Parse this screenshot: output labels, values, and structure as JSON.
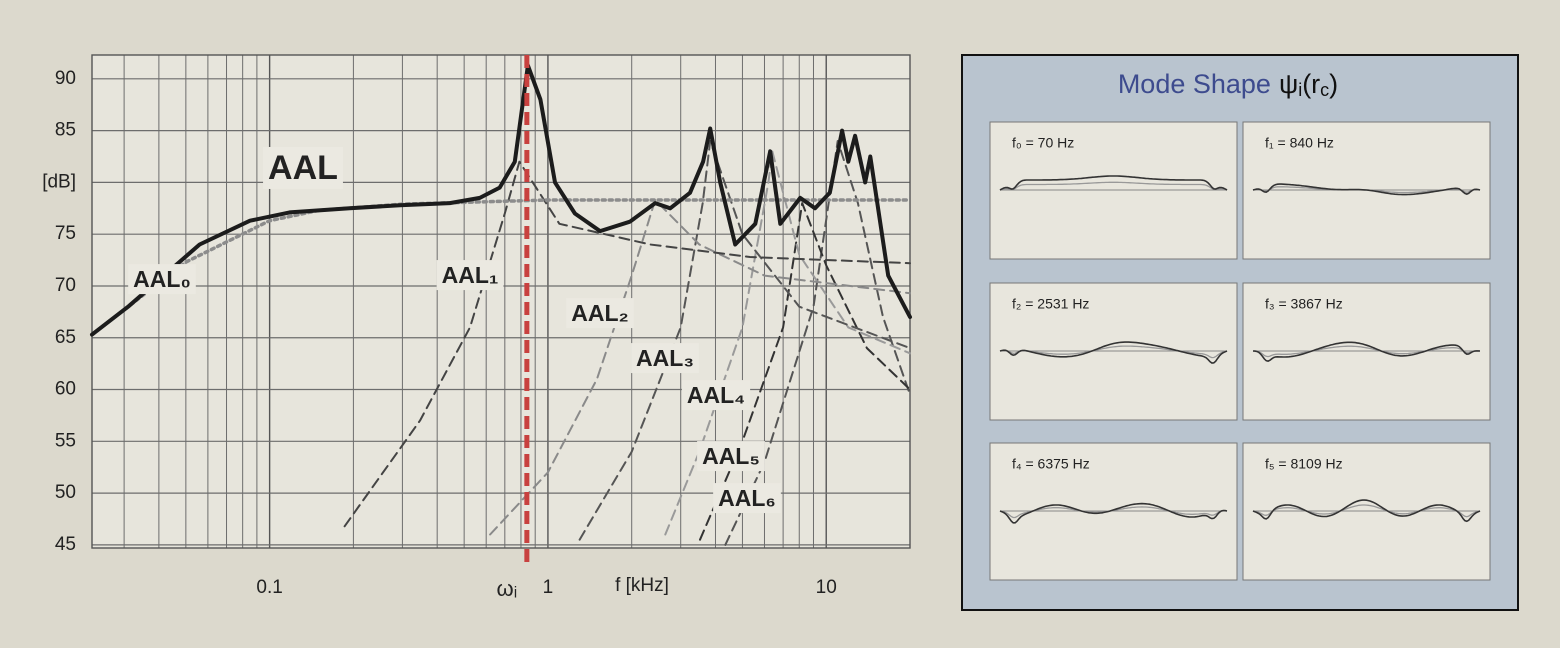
{
  "chart_data": {
    "type": "line",
    "x_scale": "log",
    "xlim": [
      0.023,
      20
    ],
    "ylim": [
      44.7,
      92.3
    ],
    "xticks": [
      0.1,
      1,
      10
    ],
    "xminor": [
      0.03,
      0.04,
      0.05,
      0.06,
      0.07,
      0.08,
      0.09,
      0.2,
      0.3,
      0.4,
      0.5,
      0.6,
      0.7,
      0.8,
      0.9,
      2,
      3,
      4,
      5,
      6,
      7,
      8,
      9,
      20
    ],
    "yticks": [
      45,
      50,
      55,
      60,
      65,
      70,
      75,
      {
        "value": 80,
        "label": "[dB]"
      },
      85,
      90
    ],
    "xlabel": "f [kHz]",
    "grid": true,
    "marker": {
      "x": 0.84,
      "label": "ωᵢ",
      "color": "#c8413f"
    },
    "series": [
      {
        "name": "AAL",
        "color": "#1c1c1c",
        "style": "solid",
        "x": [
          0.023,
          0.031,
          0.056,
          0.085,
          0.118,
          0.194,
          0.294,
          0.444,
          0.569,
          0.671,
          0.76,
          0.847,
          0.94,
          1.06,
          1.25,
          1.54,
          1.97,
          2.43,
          2.75,
          3.24,
          3.61,
          3.83,
          4.16,
          4.71,
          5.56,
          6.29,
          6.84,
          8.06,
          9.12,
          10.3,
          11.4,
          12.0,
          12.7,
          13.8,
          14.4,
          16.7,
          20
        ],
        "values": [
          65.3,
          68,
          74,
          76.3,
          77.1,
          77.5,
          77.8,
          78,
          78.5,
          79.5,
          82,
          91.3,
          88,
          80,
          77,
          75.3,
          76.2,
          78,
          77.5,
          79,
          82,
          85.2,
          80,
          74,
          76,
          83,
          76,
          78.5,
          77.5,
          79,
          85,
          82,
          84.5,
          80,
          82.5,
          71,
          67
        ]
      },
      {
        "name": "AAL₀",
        "color": "#8c8c8c",
        "style": "dotted",
        "x": [
          0.023,
          0.05,
          0.1,
          0.15,
          0.3,
          1,
          5,
          20
        ],
        "values": [
          65.3,
          72.3,
          76.3,
          77.3,
          77.9,
          78.3,
          78.3,
          78.3
        ]
      },
      {
        "name": "AAL₁",
        "color": "#444444",
        "style": "dashed",
        "x": [
          0.186,
          0.347,
          0.525,
          0.7,
          0.79,
          1.1,
          2.33,
          5.32,
          20
        ],
        "values": [
          46.8,
          57,
          66,
          77,
          82,
          76,
          74,
          72.8,
          72.2
        ]
      },
      {
        "name": "AAL₂",
        "color": "#8a8a8a",
        "style": "dashed",
        "x": [
          0.62,
          1.0,
          1.5,
          2.0,
          2.43,
          3.5,
          6,
          20
        ],
        "values": [
          46,
          52,
          61,
          71,
          78.3,
          74,
          71,
          69.3
        ]
      },
      {
        "name": "AAL₃",
        "color": "#555555",
        "style": "dashed",
        "x": [
          1.3,
          2,
          3,
          3.6,
          3.83,
          5,
          8,
          20
        ],
        "values": [
          45.5,
          54,
          66,
          78,
          84,
          75,
          68,
          64
        ]
      },
      {
        "name": "AAL₄",
        "color": "#9a9a9a",
        "style": "dashed",
        "x": [
          2.64,
          3.5,
          5,
          6.2,
          6.4,
          8,
          12,
          20
        ],
        "values": [
          46,
          54,
          66,
          80,
          83,
          73,
          66,
          63.5
        ]
      },
      {
        "name": "AAL₅",
        "color": "#333333",
        "style": "dashed",
        "x": [
          3.52,
          5,
          7,
          8.2,
          10,
          14,
          20
        ],
        "values": [
          45.5,
          55,
          66,
          78,
          72,
          64,
          60
        ]
      },
      {
        "name": "AAL₆",
        "color": "#555555",
        "style": "dashed",
        "x": [
          4.34,
          6,
          9,
          11,
          13,
          16,
          20
        ],
        "values": [
          45,
          53,
          68,
          84,
          78,
          67,
          59.5
        ]
      }
    ]
  },
  "mode_panel": {
    "title_parts": [
      "Mode Shape",
      "ψ",
      "i",
      "(r",
      "c",
      ")"
    ],
    "modes": [
      "f₀ = 70 Hz",
      "f₁ = 840 Hz",
      "f₂ = 2531 Hz",
      "f₃ = 3867 Hz",
      "f₄ = 6375 Hz",
      "f₅ = 8109 Hz"
    ]
  }
}
